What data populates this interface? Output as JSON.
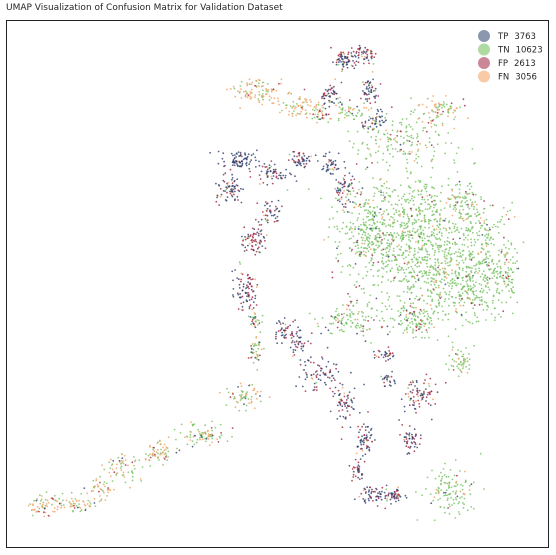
{
  "chart_data": {
    "type": "scatter",
    "title": "UMAP Visualization of Confusion Matrix for Validation Dataset",
    "xlabel": "",
    "ylabel": "",
    "grid": false,
    "axis_ticks": false,
    "legend_position": "top-right",
    "series": [
      {
        "name": "TP",
        "count": 3763,
        "color": "#2b3f6e"
      },
      {
        "name": "TN",
        "count": 10623,
        "color": "#6ebe58"
      },
      {
        "name": "FP",
        "count": 2613,
        "color": "#a3243f"
      },
      {
        "name": "FN",
        "count": 3056,
        "color": "#f0a060"
      }
    ],
    "legend": [
      {
        "label": "TP",
        "value": "3763",
        "color": "#2b3f6e"
      },
      {
        "label": "TN",
        "value": "10623",
        "color": "#6ebe58"
      },
      {
        "label": "FP",
        "value": "2613",
        "color": "#a3243f"
      },
      {
        "label": "FN",
        "value": "3056",
        "color": "#f0a060"
      }
    ]
  }
}
